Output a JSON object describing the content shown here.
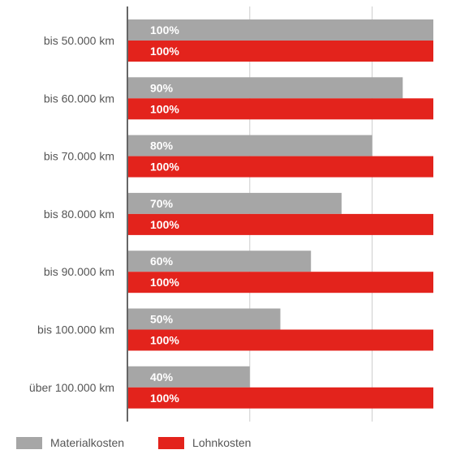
{
  "chart_data": {
    "type": "bar",
    "orientation": "horizontal",
    "categories": [
      "bis 50.000 km",
      "bis 60.000 km",
      "bis 70.000 km",
      "bis 80.000 km",
      "bis 90.000 km",
      "bis 100.000 km",
      "über 100.000 km"
    ],
    "series": [
      {
        "name": "Materialkosten",
        "color": "#a6a6a6",
        "values": [
          100,
          90,
          80,
          70,
          60,
          50,
          40
        ],
        "labels": [
          "100%",
          "90%",
          "80%",
          "70%",
          "60%",
          "50%",
          "40%"
        ]
      },
      {
        "name": "Lohnkosten",
        "color": "#e3231c",
        "values": [
          100,
          100,
          100,
          100,
          100,
          100,
          100
        ],
        "labels": [
          "100%",
          "100%",
          "100%",
          "100%",
          "100%",
          "100%",
          "100%"
        ]
      }
    ],
    "xlim": [
      0,
      100
    ],
    "grid": true,
    "legend_position": "bottom-left",
    "title": "",
    "xlabel": "",
    "ylabel": ""
  }
}
